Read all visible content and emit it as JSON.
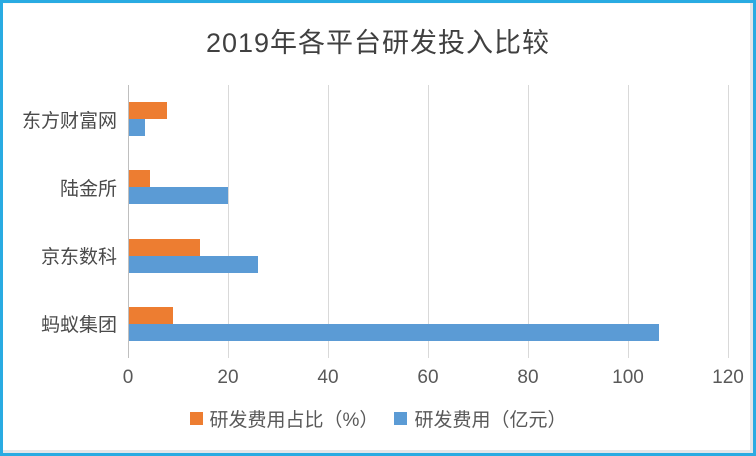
{
  "chart_data": {
    "type": "bar",
    "orientation": "horizontal",
    "title": "2019年各平台研发投入比较",
    "categories": [
      "东方财富网",
      "陆金所",
      "京东数科",
      "蚂蚁集团"
    ],
    "series": [
      {
        "name": "研发费用占比（%）",
        "color": "#ED7D31",
        "values": [
          7.5,
          4.1,
          14.1,
          8.8
        ]
      },
      {
        "name": "研发费用（亿元）",
        "color": "#5B9BD5",
        "values": [
          3.2,
          19.8,
          25.7,
          106
        ]
      }
    ],
    "xlabel": "",
    "ylabel": "",
    "xlim": [
      0,
      120
    ],
    "xticks": [
      0,
      20,
      40,
      60,
      80,
      100,
      120
    ],
    "grid": "vertical",
    "legend_position": "bottom",
    "gridline_color": "#D9D9D9",
    "axis_line_color": "#BFBFBF",
    "frame_border_color": "#29ABE2",
    "title_color": "#404040",
    "text_color": "#595959"
  }
}
